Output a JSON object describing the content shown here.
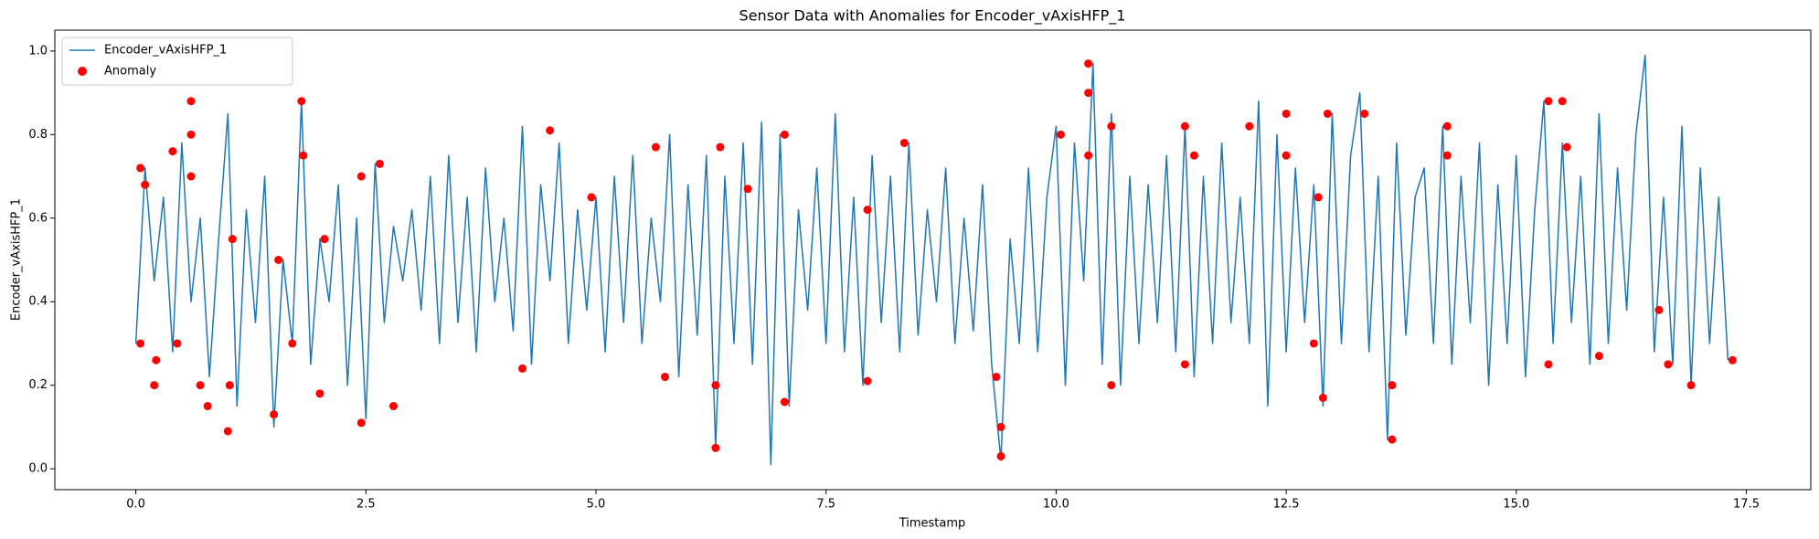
{
  "chart_data": {
    "type": "line",
    "title": "Sensor Data with Anomalies for Encoder_vAxisHFP_1",
    "xlabel": "Timestamp",
    "ylabel": "Encoder_vAxisHFP_1",
    "xlim": [
      -0.88,
      18.2
    ],
    "ylim": [
      -0.05,
      1.05
    ],
    "xticks": [
      {
        "value": 0,
        "label": "0.0"
      },
      2.5,
      {
        "value": 5,
        "label": "5.0"
      },
      7.5,
      {
        "value": 10,
        "label": "10.0"
      },
      12.5,
      {
        "value": 15,
        "label": "15.0"
      },
      17.5
    ],
    "yticks": [
      {
        "value": 0,
        "label": "0.0"
      },
      0.2,
      0.4,
      0.6,
      0.8,
      {
        "value": 1,
        "label": "1.0"
      }
    ],
    "legend": "upper left",
    "series": [
      {
        "name": "Encoder_vAxisHFP_1",
        "type": "line",
        "color": "#1f77b4",
        "x": [
          0.0,
          0.1,
          0.2,
          0.3,
          0.4,
          0.5,
          0.6,
          0.7,
          0.8,
          0.9,
          1.0,
          1.1,
          1.2,
          1.3,
          1.4,
          1.5,
          1.6,
          1.7,
          1.8,
          1.9,
          2.0,
          2.1,
          2.2,
          2.3,
          2.4,
          2.5,
          2.6,
          2.7,
          2.8,
          2.9,
          3.0,
          3.1,
          3.2,
          3.3,
          3.4,
          3.5,
          3.6,
          3.7,
          3.8,
          3.9,
          4.0,
          4.1,
          4.2,
          4.3,
          4.4,
          4.5,
          4.6,
          4.7,
          4.8,
          4.9,
          5.0,
          5.1,
          5.2,
          5.3,
          5.4,
          5.5,
          5.6,
          5.7,
          5.8,
          5.9,
          6.0,
          6.1,
          6.2,
          6.3,
          6.4,
          6.5,
          6.6,
          6.7,
          6.8,
          6.9,
          7.0,
          7.1,
          7.2,
          7.3,
          7.4,
          7.5,
          7.6,
          7.7,
          7.8,
          7.9,
          8.0,
          8.1,
          8.2,
          8.3,
          8.4,
          8.5,
          8.6,
          8.7,
          8.8,
          8.9,
          9.0,
          9.1,
          9.2,
          9.3,
          9.4,
          9.5,
          9.6,
          9.7,
          9.8,
          9.9,
          10.0,
          10.1,
          10.2,
          10.3,
          10.4,
          10.5,
          10.6,
          10.7,
          10.8,
          10.9,
          11.0,
          11.1,
          11.2,
          11.3,
          11.4,
          11.5,
          11.6,
          11.7,
          11.8,
          11.9,
          12.0,
          12.1,
          12.2,
          12.3,
          12.4,
          12.5,
          12.6,
          12.7,
          12.8,
          12.9,
          13.0,
          13.1,
          13.2,
          13.3,
          13.4,
          13.5,
          13.6,
          13.7,
          13.8,
          13.9,
          14.0,
          14.1,
          14.2,
          14.3,
          14.4,
          14.5,
          14.6,
          14.7,
          14.8,
          14.9,
          15.0,
          15.1,
          15.2,
          15.3,
          15.4,
          15.5,
          15.6,
          15.7,
          15.8,
          15.9,
          16.0,
          16.1,
          16.2,
          16.3,
          16.4,
          16.5,
          16.6,
          16.7,
          16.8,
          16.9,
          17.0,
          17.1,
          17.2,
          17.3
        ],
        "values": [
          0.3,
          0.72,
          0.45,
          0.65,
          0.28,
          0.78,
          0.4,
          0.6,
          0.22,
          0.55,
          0.85,
          0.15,
          0.62,
          0.35,
          0.7,
          0.1,
          0.5,
          0.3,
          0.88,
          0.25,
          0.55,
          0.4,
          0.68,
          0.2,
          0.6,
          0.12,
          0.73,
          0.35,
          0.58,
          0.45,
          0.62,
          0.38,
          0.7,
          0.3,
          0.75,
          0.35,
          0.65,
          0.28,
          0.72,
          0.4,
          0.6,
          0.33,
          0.82,
          0.25,
          0.68,
          0.45,
          0.78,
          0.3,
          0.62,
          0.38,
          0.65,
          0.28,
          0.7,
          0.35,
          0.75,
          0.3,
          0.6,
          0.4,
          0.8,
          0.22,
          0.68,
          0.32,
          0.75,
          0.05,
          0.7,
          0.3,
          0.78,
          0.25,
          0.83,
          0.01,
          0.8,
          0.15,
          0.62,
          0.38,
          0.72,
          0.3,
          0.85,
          0.28,
          0.65,
          0.2,
          0.75,
          0.35,
          0.7,
          0.28,
          0.78,
          0.32,
          0.62,
          0.4,
          0.72,
          0.3,
          0.6,
          0.33,
          0.68,
          0.25,
          0.02,
          0.55,
          0.3,
          0.72,
          0.28,
          0.65,
          0.82,
          0.2,
          0.78,
          0.45,
          0.97,
          0.25,
          0.85,
          0.2,
          0.7,
          0.3,
          0.68,
          0.35,
          0.75,
          0.28,
          0.82,
          0.22,
          0.7,
          0.3,
          0.78,
          0.35,
          0.65,
          0.3,
          0.88,
          0.15,
          0.8,
          0.28,
          0.72,
          0.35,
          0.68,
          0.15,
          0.85,
          0.3,
          0.75,
          0.9,
          0.28,
          0.7,
          0.07,
          0.78,
          0.32,
          0.65,
          0.72,
          0.3,
          0.82,
          0.25,
          0.7,
          0.35,
          0.78,
          0.2,
          0.68,
          0.3,
          0.75,
          0.22,
          0.62,
          0.88,
          0.3,
          0.78,
          0.35,
          0.7,
          0.25,
          0.85,
          0.3,
          0.72,
          0.38,
          0.8,
          0.99,
          0.28,
          0.65,
          0.25,
          0.82,
          0.2,
          0.72,
          0.3,
          0.65,
          0.26
        ]
      },
      {
        "name": "Anomaly",
        "type": "scatter",
        "color": "#ff0000",
        "x": [
          0.05,
          0.05,
          0.1,
          0.2,
          0.22,
          0.4,
          0.45,
          0.6,
          0.6,
          0.6,
          0.7,
          0.78,
          1.0,
          1.02,
          1.05,
          1.5,
          1.55,
          1.7,
          1.8,
          1.82,
          2.0,
          2.05,
          2.45,
          2.45,
          2.65,
          2.8,
          4.2,
          4.5,
          4.95,
          5.65,
          5.75,
          6.3,
          6.3,
          6.35,
          6.65,
          7.05,
          7.05,
          7.95,
          7.95,
          8.35,
          9.35,
          9.4,
          9.4,
          10.05,
          10.35,
          10.35,
          10.35,
          10.6,
          10.6,
          11.4,
          11.4,
          11.5,
          12.1,
          12.5,
          12.5,
          12.8,
          12.85,
          12.9,
          12.95,
          13.35,
          13.65,
          13.65,
          14.25,
          14.25,
          15.35,
          15.35,
          15.5,
          15.55,
          15.9,
          16.55,
          16.65,
          16.9,
          17.35
        ],
        "values": [
          0.3,
          0.72,
          0.68,
          0.2,
          0.26,
          0.76,
          0.3,
          0.88,
          0.8,
          0.7,
          0.2,
          0.15,
          0.09,
          0.2,
          0.55,
          0.13,
          0.5,
          0.3,
          0.88,
          0.75,
          0.18,
          0.55,
          0.11,
          0.7,
          0.73,
          0.15,
          0.24,
          0.81,
          0.65,
          0.77,
          0.22,
          0.05,
          0.2,
          0.77,
          0.67,
          0.8,
          0.16,
          0.62,
          0.21,
          0.78,
          0.22,
          0.03,
          0.1,
          0.8,
          0.97,
          0.9,
          0.75,
          0.82,
          0.2,
          0.82,
          0.25,
          0.75,
          0.82,
          0.85,
          0.75,
          0.3,
          0.65,
          0.17,
          0.85,
          0.85,
          0.07,
          0.2,
          0.82,
          0.75,
          0.88,
          0.25,
          0.88,
          0.77,
          0.27,
          0.38,
          0.25,
          0.2,
          0.26
        ]
      }
    ]
  }
}
